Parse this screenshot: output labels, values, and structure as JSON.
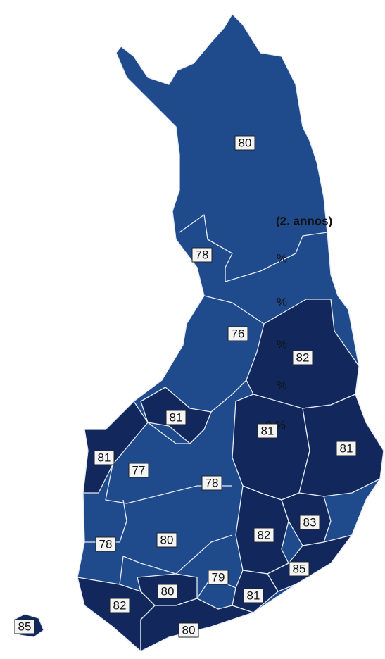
{
  "legend": {
    "title": "(2. annos)",
    "labels": [
      "%",
      "%",
      "%",
      "%",
      "0 %"
    ]
  },
  "land_color": "#1f4a8c",
  "regions": [
    {
      "value": 80,
      "color": "#1f4a8c"
    },
    {
      "value": 78,
      "color": "#1f4a8c"
    },
    {
      "value": 76,
      "color": "#1f4a8c"
    },
    {
      "value": 82,
      "color": "#12285c"
    },
    {
      "value": 81,
      "color": "#12285c"
    },
    {
      "value": 81,
      "color": "#12285c"
    },
    {
      "value": 81,
      "color": "#12285c"
    },
    {
      "value": 77,
      "color": "#1f4a8c"
    },
    {
      "value": 78,
      "color": "#1f4a8c"
    },
    {
      "value": 81,
      "color": "#12285c"
    },
    {
      "value": 78,
      "color": "#1f4a8c"
    },
    {
      "value": 80,
      "color": "#1f4a8c"
    },
    {
      "value": 82,
      "color": "#12285c"
    },
    {
      "value": 83,
      "color": "#12285c"
    },
    {
      "value": 85,
      "color": "#12285c"
    },
    {
      "value": 79,
      "color": "#1f4a8c"
    },
    {
      "value": 80,
      "color": "#12285c"
    },
    {
      "value": 81,
      "color": "#12285c"
    },
    {
      "value": 82,
      "color": "#12285c"
    },
    {
      "value": 80,
      "color": "#12285c"
    },
    {
      "value": 85,
      "color": "#12285c"
    }
  ]
}
